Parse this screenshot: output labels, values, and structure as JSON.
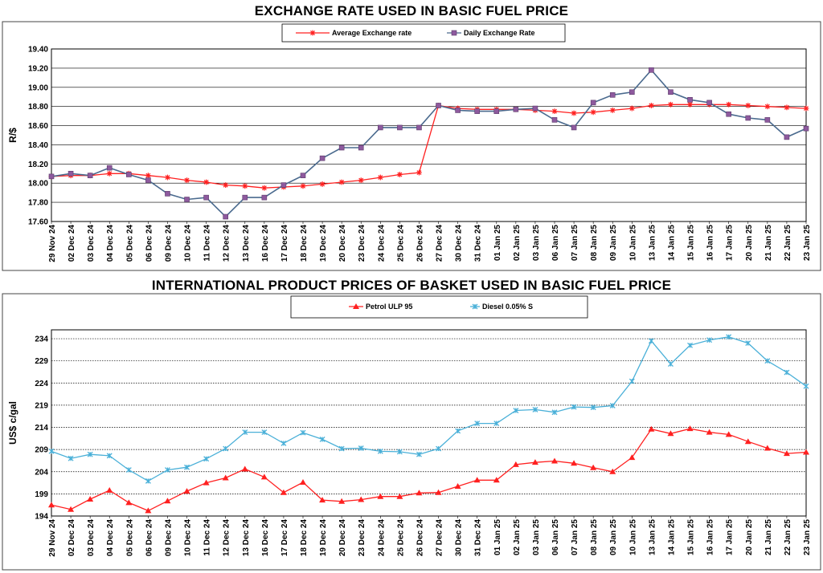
{
  "chart_data": [
    {
      "type": "line",
      "title": "EXCHANGE RATE USED IN BASIC FUEL PRICE",
      "xlabel": "",
      "ylabel": "R/$",
      "ylim": [
        17.6,
        19.4
      ],
      "yticks": [
        "17.60",
        "17.80",
        "18.00",
        "18.20",
        "18.40",
        "18.60",
        "18.80",
        "19.00",
        "19.20",
        "19.40"
      ],
      "categories": [
        "29 Nov 24",
        "02 Dec 24",
        "03 Dec 24",
        "04 Dec 24",
        "05 Dec 24",
        "06 Dec 24",
        "09 Dec 24",
        "10 Dec 24",
        "11 Dec 24",
        "12 Dec 24",
        "13 Dec 24",
        "16 Dec 24",
        "17 Dec 24",
        "18 Dec 24",
        "19 Dec 24",
        "20 Dec 24",
        "23 Dec 24",
        "24 Dec 24",
        "25 Dec 24",
        "26 Dec 24",
        "27 Dec 24",
        "30 Dec 24",
        "31 Dec 24",
        "01 Jan 25",
        "02 Jan 25",
        "03 Jan 25",
        "06 Jan 25",
        "07 Jan 25",
        "08 Jan 25",
        "09 Jan 25",
        "10 Jan 25",
        "13 Jan 25",
        "14 Jan 25",
        "15 Jan 25",
        "16 Jan 25",
        "17 Jan 25",
        "20 Jan 25",
        "21 Jan 25",
        "22 Jan 25",
        "23 Jan 25"
      ],
      "legend_position": "top",
      "series": [
        {
          "name": "Average Exchange rate",
          "color": "#ff2020",
          "marker": "star",
          "values": [
            18.07,
            18.08,
            18.08,
            18.1,
            18.1,
            18.08,
            18.06,
            18.03,
            18.01,
            17.98,
            17.97,
            17.95,
            17.96,
            17.97,
            17.99,
            18.01,
            18.03,
            18.06,
            18.09,
            18.11,
            18.81,
            18.78,
            18.77,
            18.77,
            18.77,
            18.76,
            18.75,
            18.73,
            18.74,
            18.76,
            18.78,
            18.81,
            18.82,
            18.82,
            18.82,
            18.82,
            18.81,
            18.8,
            18.79,
            18.78
          ]
        },
        {
          "name": "Daily Exchange Rate",
          "color": "#4a6a8e",
          "marker_color": "#8e5a9e",
          "marker": "square",
          "values": [
            18.07,
            18.1,
            18.08,
            18.16,
            18.09,
            18.03,
            17.89,
            17.83,
            17.85,
            17.65,
            17.85,
            17.85,
            17.98,
            18.08,
            18.26,
            18.37,
            18.37,
            18.58,
            18.58,
            18.58,
            18.81,
            18.76,
            18.75,
            18.75,
            18.77,
            18.78,
            18.66,
            18.58,
            18.84,
            18.92,
            18.95,
            19.18,
            18.95,
            18.87,
            18.84,
            18.72,
            18.68,
            18.66,
            18.48,
            18.57
          ]
        }
      ]
    },
    {
      "type": "line",
      "title": "INTERNATIONAL PRODUCT PRICES OF BASKET USED IN BASIC FUEL PRICE",
      "xlabel": "",
      "ylabel": "US$ c/gal",
      "ylim": [
        194,
        236
      ],
      "yticks": [
        "194",
        "199",
        "204",
        "209",
        "214",
        "219",
        "224",
        "229",
        "234"
      ],
      "categories": [
        "29 Nov 24",
        "02 Dec 24",
        "03 Dec 24",
        "04 Dec 24",
        "05 Dec 24",
        "06 Dec 24",
        "09 Dec 24",
        "10 Dec 24",
        "11 Dec 24",
        "12 Dec 24",
        "13 Dec 24",
        "16 Dec 24",
        "17 Dec 24",
        "18 Dec 24",
        "19 Dec 24",
        "20 Dec 24",
        "23 Dec 24",
        "24 Dec 24",
        "25 Dec 24",
        "26 Dec 24",
        "27 Dec 24",
        "30 Dec 24",
        "31 Dec 24",
        "01 Jan 25",
        "02 Jan 25",
        "03 Jan 25",
        "06 Jan 25",
        "07 Jan 25",
        "08 Jan 25",
        "09 Jan 25",
        "10 Jan 25",
        "13 Jan 25",
        "14 Jan 25",
        "15 Jan 25",
        "16 Jan 25",
        "17 Jan 25",
        "20 Jan 25",
        "21 Jan 25",
        "22 Jan 25",
        "23 Jan 25"
      ],
      "legend_position": "top",
      "series": [
        {
          "name": "Petrol ULP 95",
          "color": "#ff2020",
          "marker": "triangle",
          "values": [
            196.5,
            195.5,
            197.8,
            199.8,
            197.0,
            195.2,
            197.4,
            199.6,
            201.5,
            202.6,
            204.6,
            202.8,
            199.3,
            201.6,
            197.6,
            197.3,
            197.7,
            198.4,
            198.4,
            199.2,
            199.3,
            200.7,
            202.1,
            202.1,
            205.6,
            206.1,
            206.4,
            205.9,
            204.9,
            204.0,
            207.2,
            213.6,
            212.6,
            213.7,
            212.9,
            212.4,
            210.8,
            209.3,
            208.1,
            208.4
          ]
        },
        {
          "name": "Diesel 0.05% S",
          "color": "#4ab0d8",
          "marker": "x",
          "values": [
            208.6,
            207.0,
            207.9,
            207.6,
            204.4,
            201.9,
            204.4,
            205.0,
            206.9,
            209.2,
            212.9,
            212.9,
            210.4,
            212.8,
            211.3,
            209.2,
            209.3,
            208.6,
            208.5,
            207.9,
            209.2,
            213.2,
            214.9,
            214.9,
            217.8,
            218.0,
            217.4,
            218.6,
            218.5,
            218.9,
            224.4,
            233.5,
            228.3,
            232.5,
            233.7,
            234.4,
            233.0,
            229.0,
            226.4,
            223.3
          ]
        }
      ]
    }
  ]
}
